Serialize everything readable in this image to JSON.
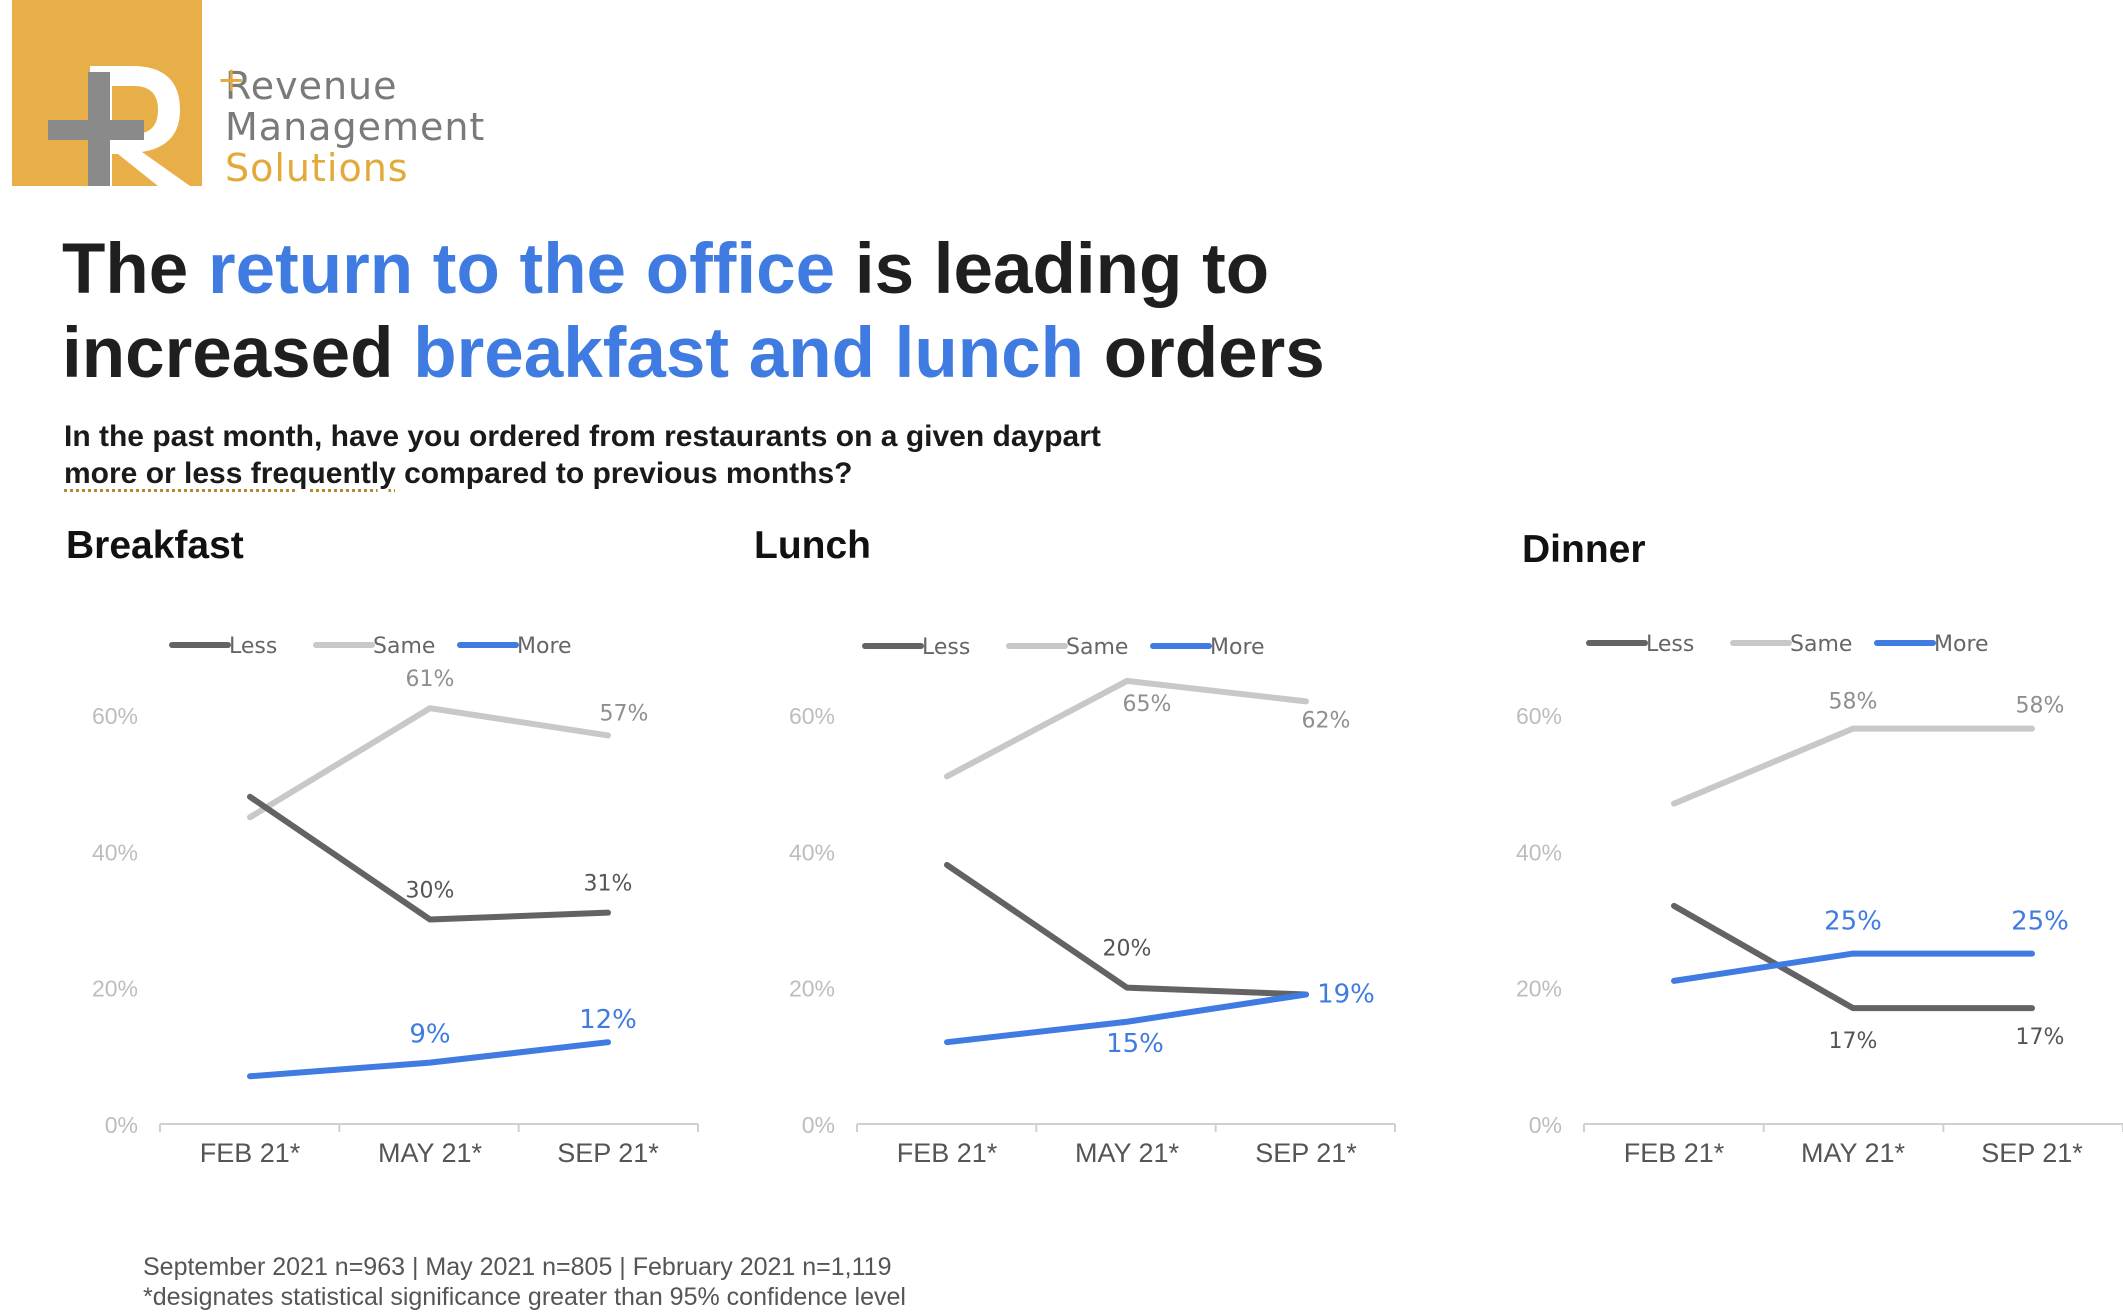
{
  "brand": {
    "line1": "Revenue",
    "line2": "Management",
    "line3": "Solutions",
    "colors": {
      "gold": "#E8AE47",
      "gray": "#8a8a8a",
      "accent_blue": "#3F7BE0"
    }
  },
  "headline": {
    "part1": "The ",
    "part2": "return to the office",
    "part3": " is leading to",
    "part4": "increased ",
    "part5": "breakfast and lunch",
    "part6": " orders"
  },
  "question": {
    "line1": "In the past month, have you ordered from restaurants on a given daypart",
    "line2_underlined": "more or less frequently",
    "line2_rest": " compared to previous months?"
  },
  "footer": {
    "line1": "September 2021 n=963 | May 2021 n=805 | February 2021 n=1,119",
    "line2": "*designates statistical significance greater than 95% confidence level"
  },
  "chart_data": [
    {
      "type": "line",
      "title": "Breakfast",
      "categories": [
        "FEB 21*",
        "MAY 21*",
        "SEP 21*"
      ],
      "ylim": [
        0,
        60
      ],
      "yticks": [
        "0%",
        "20%",
        "40%",
        "60%"
      ],
      "legend_position": "top",
      "grid": false,
      "series": [
        {
          "name": "Less",
          "color": "#636363",
          "values": [
            48,
            30,
            31
          ],
          "labels": [
            "",
            "30%",
            "31%"
          ]
        },
        {
          "name": "Same",
          "color": "#C8C8C8",
          "values": [
            45,
            61,
            57
          ],
          "labels": [
            "",
            "61%",
            "57%"
          ]
        },
        {
          "name": "More",
          "color": "#3F7BE0",
          "values": [
            7,
            9,
            12
          ],
          "labels": [
            "",
            "9%",
            "12%"
          ]
        }
      ]
    },
    {
      "type": "line",
      "title": "Lunch",
      "categories": [
        "FEB 21*",
        "MAY 21*",
        "SEP 21*"
      ],
      "ylim": [
        0,
        60
      ],
      "yticks": [
        "0%",
        "20%",
        "40%",
        "60%"
      ],
      "legend_position": "top",
      "grid": false,
      "series": [
        {
          "name": "Less",
          "color": "#636363",
          "values": [
            38,
            20,
            19
          ],
          "labels": [
            "",
            "20%",
            ""
          ]
        },
        {
          "name": "Same",
          "color": "#C8C8C8",
          "values": [
            51,
            65,
            62
          ],
          "labels": [
            "",
            "65%",
            "62%"
          ]
        },
        {
          "name": "More",
          "color": "#3F7BE0",
          "values": [
            12,
            15,
            19
          ],
          "labels": [
            "",
            "15%",
            "19%"
          ]
        }
      ]
    },
    {
      "type": "line",
      "title": "Dinner",
      "categories": [
        "FEB 21*",
        "MAY 21*",
        "SEP 21*"
      ],
      "ylim": [
        0,
        60
      ],
      "yticks": [
        "0%",
        "20%",
        "40%",
        "60%"
      ],
      "legend_position": "top",
      "grid": false,
      "series": [
        {
          "name": "Less",
          "color": "#636363",
          "values": [
            32,
            17,
            17
          ],
          "labels": [
            "",
            "17%",
            "17%"
          ]
        },
        {
          "name": "Same",
          "color": "#C8C8C8",
          "values": [
            47,
            58,
            58
          ],
          "labels": [
            "",
            "58%",
            "58%"
          ]
        },
        {
          "name": "More",
          "color": "#3F7BE0",
          "values": [
            21,
            25,
            25
          ],
          "labels": [
            "",
            "25%",
            "25%"
          ]
        }
      ]
    }
  ]
}
